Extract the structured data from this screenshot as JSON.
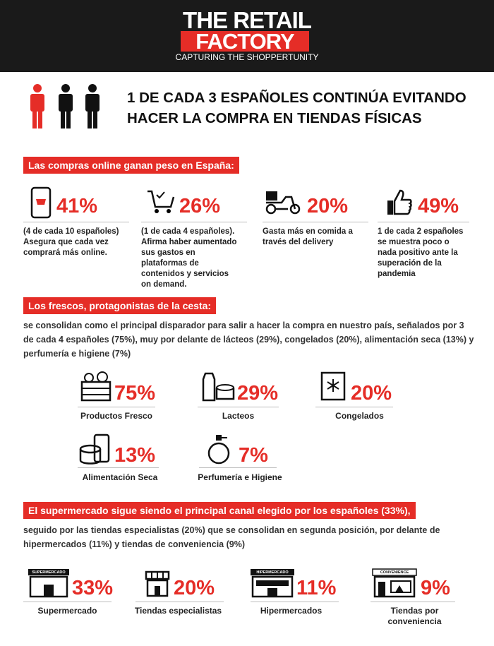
{
  "header": {
    "brand_top": "THE RETAIL",
    "brand_bottom": "FACTORY",
    "tagline": "CAPTURING THE SHOPPERTUNITY"
  },
  "headline": {
    "lines": [
      "1 DE CADA 3 ESPAÑOLES CONTINÚA EVITANDO",
      "HACER LA COMPRA EN TIENDAS FÍSICAS"
    ]
  },
  "online": {
    "title": "Las compras online ganan peso en España:",
    "stats": [
      {
        "value": "41%",
        "text": "(4 de cada 10 españoles) Asegura que cada vez comprará más online."
      },
      {
        "value": "26%",
        "text": "(1 de cada 4 españoles). Afirma haber aumentado sus gastos en plataformas de contenidos y servicios on demand."
      },
      {
        "value": "20%",
        "text": "Gasta más en comida a través del delivery"
      },
      {
        "value": "49%",
        "text": "1 de cada 2 españoles se muestra poco o nada positivo ante la superación de la pandemia"
      }
    ]
  },
  "fresh": {
    "title": "Los frescos, protagonistas de la cesta:",
    "body": "se consolidan como el principal disparador para salir a hacer la compra en nuestro país, señalados por 3 de cada 4 españoles (75%), muy por delante de lácteos (29%), congelados (20%), alimentación seca (13%) y perfumería e higiene (7%)",
    "items": [
      {
        "value": "75%",
        "label": "Productos Fresco"
      },
      {
        "value": "29%",
        "label": "Lacteos"
      },
      {
        "value": "20%",
        "label": "Congelados"
      },
      {
        "value": "13%",
        "label": "Alimentación Seca"
      },
      {
        "value": "7%",
        "label": "Perfumería e Higiene"
      }
    ]
  },
  "channels": {
    "title": "El supermercado sigue siendo el principal canal elegido por los españoles (33%),",
    "body": "seguido por las tiendas especialistas (20%) que se consolidan en segunda posición, por delante de hipermercados (11%) y tiendas de conveniencia (9%)",
    "items": [
      {
        "value": "33%",
        "label": "Supermercado",
        "sign": "SUPERMERCADO"
      },
      {
        "value": "20%",
        "label": "Tiendas especialistas"
      },
      {
        "value": "11%",
        "label": "Hipermercados",
        "sign": "HIPERMERCADO"
      },
      {
        "value": "9%",
        "label": "Tiendas por conveniencia",
        "sign": "CONVENIENCE"
      }
    ]
  }
}
